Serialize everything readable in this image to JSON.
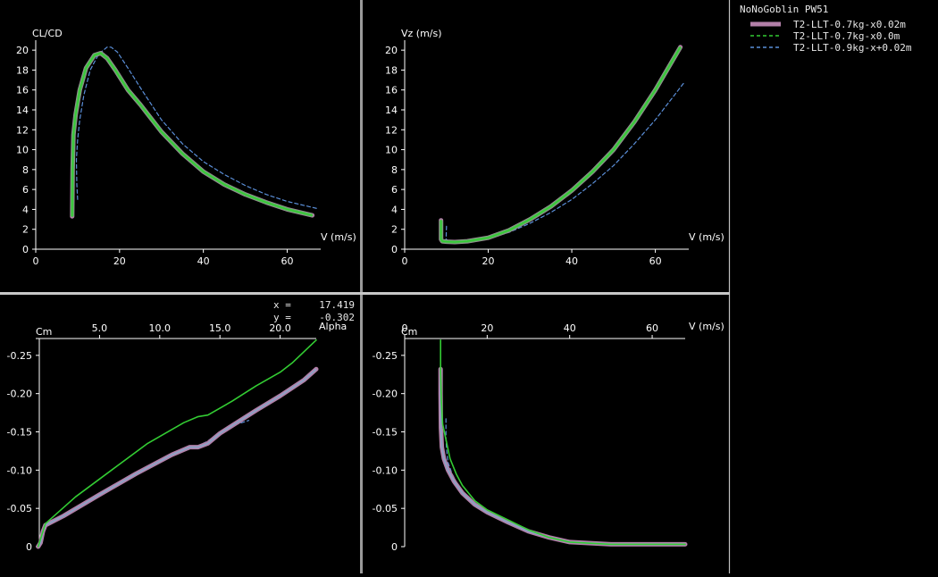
{
  "legend": {
    "title": "NoNoGoblin PW51",
    "entries": [
      {
        "label": "T2-LLT-0.7kg-x0.02m",
        "color": "#b27fa8",
        "style": "solid"
      },
      {
        "label": "T2-LLT-0.7kg-x0.0m",
        "color": "#33cc33",
        "style": "dashed"
      },
      {
        "label": "T2-LLT-0.9kg-x+0.02m",
        "color": "#5b8fd9",
        "style": "dashed"
      }
    ]
  },
  "cursor_readout": {
    "x_label": "x =",
    "x_value": "17.419",
    "y_label": "y =",
    "y_value": "-0.302"
  },
  "chart_data": [
    {
      "type": "line",
      "ylabel": "CL/CD",
      "xlabel": "V (m/s)",
      "xlim": [
        0,
        68
      ],
      "ylim": [
        0,
        21
      ],
      "xticks": [
        0,
        20,
        40,
        60
      ],
      "yticks": [
        0,
        2,
        4,
        6,
        8,
        10,
        12,
        14,
        16,
        18,
        20
      ],
      "series": [
        {
          "name": "T2-LLT-0.7kg-x0.02m",
          "x": [
            8.7,
            8.8,
            9,
            9.5,
            10.5,
            12,
            14,
            15.5,
            17,
            19,
            22,
            25,
            30,
            35,
            40,
            45,
            50,
            55,
            60,
            66
          ],
          "y": [
            3.3,
            8,
            11.5,
            13.5,
            16,
            18.2,
            19.5,
            19.7,
            19.2,
            18,
            16,
            14.5,
            11.8,
            9.6,
            7.8,
            6.5,
            5.5,
            4.7,
            4.0,
            3.4
          ]
        },
        {
          "name": "T2-LLT-0.7kg-x0.0m",
          "x": [
            8.7,
            8.8,
            9,
            9.5,
            10.5,
            12,
            14,
            15.5,
            17,
            19,
            22,
            25,
            30,
            35,
            40,
            45,
            50,
            55,
            60,
            66
          ],
          "y": [
            3.3,
            8,
            11.5,
            13.5,
            16,
            18.2,
            19.5,
            19.7,
            19.2,
            18,
            16,
            14.5,
            11.8,
            9.6,
            7.8,
            6.5,
            5.5,
            4.7,
            4.0,
            3.4
          ]
        },
        {
          "name": "T2-LLT-0.9kg-x+0.02m",
          "x": [
            10,
            9.8,
            9.7,
            10,
            10.5,
            11.5,
            13,
            15,
            17,
            18,
            19.5,
            22,
            25,
            30,
            35,
            40,
            45,
            50,
            55,
            60,
            67
          ],
          "y": [
            5,
            6.5,
            9,
            11,
            13,
            15.5,
            18,
            19.6,
            20.3,
            20.3,
            19.8,
            18.2,
            16.2,
            13,
            10.6,
            8.8,
            7.5,
            6.4,
            5.5,
            4.8,
            4.1
          ]
        }
      ]
    },
    {
      "type": "line",
      "ylabel": "Vz (m/s)",
      "xlabel": "V (m/s)",
      "xlim": [
        0,
        68
      ],
      "ylim": [
        0,
        21
      ],
      "xticks": [
        0,
        20,
        40,
        60
      ],
      "yticks": [
        0,
        2,
        4,
        6,
        8,
        10,
        12,
        14,
        16,
        18,
        20
      ],
      "series": [
        {
          "name": "T2-LLT-0.7kg-x0.02m",
          "x": [
            8.7,
            8.7,
            9,
            10,
            12,
            15,
            20,
            25,
            30,
            35,
            40,
            45,
            50,
            55,
            60,
            66
          ],
          "y": [
            2.9,
            1.0,
            0.8,
            0.75,
            0.72,
            0.8,
            1.15,
            1.9,
            3.0,
            4.3,
            5.9,
            7.8,
            10.0,
            12.8,
            16.0,
            20.3
          ]
        },
        {
          "name": "T2-LLT-0.7kg-x0.0m",
          "x": [
            8.7,
            8.7,
            9,
            10,
            12,
            15,
            20,
            25,
            30,
            35,
            40,
            45,
            50,
            55,
            60,
            66
          ],
          "y": [
            2.9,
            1.0,
            0.8,
            0.75,
            0.72,
            0.8,
            1.15,
            1.9,
            3.0,
            4.3,
            5.9,
            7.8,
            10.0,
            12.8,
            16.0,
            20.3
          ]
        },
        {
          "name": "T2-LLT-0.9kg-x+0.02m",
          "x": [
            10,
            9.9,
            10.5,
            12,
            15,
            20,
            25,
            30,
            35,
            40,
            45,
            50,
            55,
            60,
            67
          ],
          "y": [
            2.3,
            1.0,
            0.85,
            0.82,
            0.85,
            1.1,
            1.7,
            2.6,
            3.7,
            5.0,
            6.6,
            8.4,
            10.6,
            13.0,
            16.8
          ]
        }
      ]
    },
    {
      "type": "line",
      "ylabel": "Cm",
      "xlabel": "Alpha",
      "xlim": [
        -0.3,
        23
      ],
      "ylim": [
        -0.272,
        0
      ],
      "xticks": [
        5.0,
        10.0,
        15.0,
        20.0
      ],
      "xticklabels": [
        "5.0",
        "10.0",
        "15.0",
        "20.0"
      ],
      "yticks": [
        0,
        -0.05,
        -0.1,
        -0.15,
        -0.2,
        -0.25
      ],
      "yticklabels": [
        "0",
        "-0.05",
        "-0.10",
        "-0.15",
        "-0.20",
        "-0.25"
      ],
      "series": [
        {
          "name": "T2-LLT-0.7kg-x0.02m",
          "x": [
            -0.1,
            0.1,
            0.3,
            0.5,
            2,
            5,
            8,
            11,
            12.5,
            13.2,
            14,
            15,
            18,
            20,
            22,
            23
          ],
          "y": [
            0,
            -0.005,
            -0.02,
            -0.028,
            -0.04,
            -0.068,
            -0.095,
            -0.12,
            -0.13,
            -0.13,
            -0.135,
            -0.148,
            -0.178,
            -0.197,
            -0.218,
            -0.232
          ]
        },
        {
          "name": "T2-LLT-0.7kg-x0.0m",
          "x": [
            -0.1,
            0.1,
            0.3,
            0.5,
            3,
            6,
            9,
            12,
            13.2,
            14,
            16,
            18,
            20,
            21,
            22,
            23
          ],
          "y": [
            0,
            -0.01,
            -0.02,
            -0.03,
            -0.065,
            -0.1,
            -0.135,
            -0.162,
            -0.17,
            -0.172,
            -0.19,
            -0.21,
            -0.228,
            -0.24,
            -0.255,
            -0.27
          ]
        },
        {
          "name": "T2-LLT-0.9kg-x+0.02m",
          "x": [
            -0.1,
            0.3,
            0.6,
            2,
            5,
            8,
            11,
            13,
            14,
            15,
            16,
            17,
            17.4
          ],
          "y": [
            0,
            -0.02,
            -0.028,
            -0.04,
            -0.068,
            -0.095,
            -0.12,
            -0.13,
            -0.138,
            -0.15,
            -0.158,
            -0.163,
            -0.165
          ]
        }
      ]
    },
    {
      "type": "line",
      "ylabel": "Cm",
      "xlabel": "V (m/s)",
      "xlim": [
        0,
        68
      ],
      "ylim": [
        -0.272,
        0
      ],
      "xticks": [
        0,
        20,
        40,
        60
      ],
      "yticks": [
        0,
        -0.05,
        -0.1,
        -0.15,
        -0.2,
        -0.25
      ],
      "yticklabels": [
        "0",
        "-0.05",
        "-0.10",
        "-0.15",
        "-0.20",
        "-0.25"
      ],
      "series": [
        {
          "name": "T2-LLT-0.7kg-x0.02m",
          "x": [
            8.7,
            8.7,
            8.8,
            9,
            9.5,
            10.5,
            12,
            14,
            17,
            20,
            25,
            30,
            35,
            40,
            50,
            60,
            68
          ],
          "y": [
            -0.232,
            -0.2,
            -0.155,
            -0.13,
            -0.115,
            -0.1,
            -0.085,
            -0.07,
            -0.055,
            -0.045,
            -0.032,
            -0.02,
            -0.012,
            -0.006,
            -0.003,
            -0.003,
            -0.003
          ]
        },
        {
          "name": "T2-LLT-0.7kg-x0.0m",
          "x": [
            8.7,
            8.7,
            8.9,
            9.2,
            10,
            11,
            12.5,
            14,
            17,
            20,
            25,
            30,
            35,
            40,
            50,
            60,
            68
          ],
          "y": [
            -0.27,
            -0.23,
            -0.19,
            -0.16,
            -0.14,
            -0.115,
            -0.095,
            -0.08,
            -0.06,
            -0.048,
            -0.035,
            -0.022,
            -0.012,
            -0.006,
            -0.003,
            -0.003,
            -0.003
          ]
        },
        {
          "name": "T2-LLT-0.9kg-x+0.02m",
          "x": [
            10,
            10,
            10.2,
            10.5,
            11.5,
            13,
            15,
            18,
            20,
            25,
            30,
            35,
            40,
            50,
            60,
            68
          ],
          "y": [
            -0.167,
            -0.14,
            -0.125,
            -0.11,
            -0.095,
            -0.08,
            -0.066,
            -0.052,
            -0.044,
            -0.032,
            -0.02,
            -0.012,
            -0.006,
            -0.003,
            -0.003,
            -0.003
          ]
        }
      ]
    }
  ]
}
